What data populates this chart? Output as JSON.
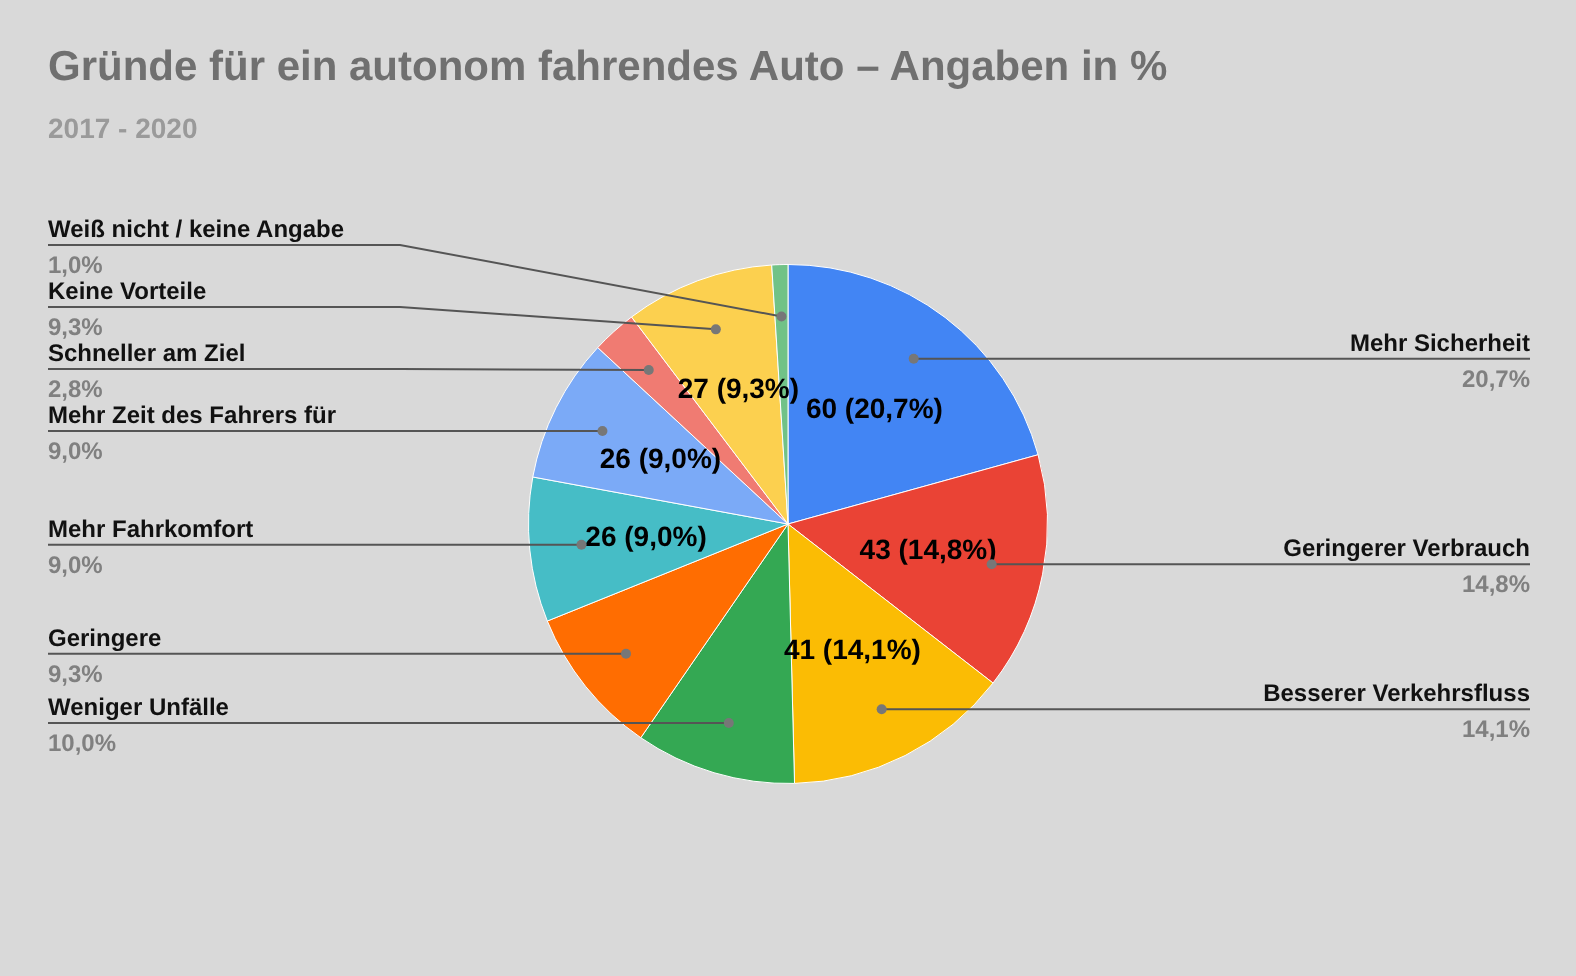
{
  "chart_data": {
    "type": "pie",
    "title": "Gründe für ein autonom fahrendes Auto – Angaben in %",
    "subtitle": "2017 - 2020",
    "categories": [
      "Mehr Sicherheit",
      "Geringerer Verbrauch",
      "Besserer Verkehrsfluss",
      "Weniger Unfälle",
      "Geringere",
      "Mehr Fahrkomfort",
      "Mehr Zeit des Fahrers für",
      "Schneller am Ziel",
      "Keine Vorteile",
      "Weiß nicht / keine Angabe"
    ],
    "values": [
      20.7,
      14.8,
      14.1,
      10.0,
      9.3,
      9.0,
      9.0,
      2.8,
      9.3,
      1.0
    ],
    "colors": [
      "#4285f4",
      "#ea4335",
      "#fbbc04",
      "#34a853",
      "#ff6d01",
      "#46bdc6",
      "#7baaf7",
      "#f07b72",
      "#fcd04f",
      "#71c287"
    ],
    "value_labels": [
      "60 (20,7%)",
      "43 (14,8%)",
      "41 (14,1%)",
      null,
      null,
      "26 (9,0%)",
      "26 (9,0%)",
      null,
      "27 (9,3%)",
      null
    ],
    "annotations": [
      "20,7%",
      "14,8%",
      "14,1%",
      "10,0%",
      "9,3%",
      "9,0%",
      "9,0%",
      "2,8%",
      "9,3%",
      "1,0%"
    ]
  }
}
